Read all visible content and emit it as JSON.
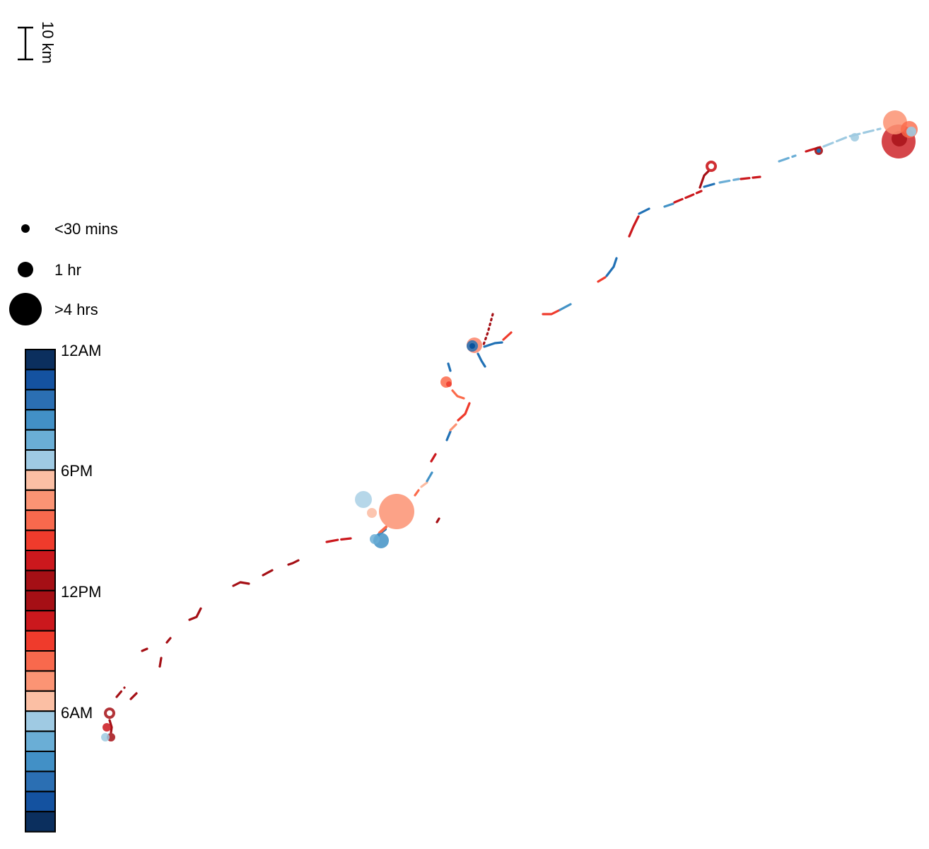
{
  "scale_bar": {
    "label": "10 km"
  },
  "duration_legend": [
    {
      "label": "<30 mins",
      "size": "small"
    },
    {
      "label": "1 hr",
      "size": "medium"
    },
    {
      "label": ">4 hrs",
      "size": "large"
    }
  ],
  "time_legend": {
    "tick_labels": [
      {
        "label": "12AM",
        "slot": 0
      },
      {
        "label": "6PM",
        "slot": 6
      },
      {
        "label": "12PM",
        "slot": 12
      },
      {
        "label": "6AM",
        "slot": 18
      }
    ],
    "colors": [
      "#0b2f5e",
      "#1452a0",
      "#2b6fb3",
      "#4290c6",
      "#6aaed6",
      "#9fcae3",
      "#fbbfa4",
      "#fb9474",
      "#f8694d",
      "#ef3b2c",
      "#cb181d",
      "#a50f15",
      "#a50f15",
      "#cb181d",
      "#ef3b2c",
      "#f8694d",
      "#fb9474",
      "#fbbfa4",
      "#9fcae3",
      "#6aaed6",
      "#4290c6",
      "#2b6fb3",
      "#1452a0",
      "#0b2f5e"
    ]
  },
  "colors": {
    "dark_red": "#a50f15",
    "red": "#cb181d",
    "orange_red": "#ef3b2c",
    "salmon": "#fb6a4a",
    "light_salmon": "#fc9272",
    "pale_salmon": "#fcbba1",
    "light_blue": "#9ecae1",
    "mid_blue": "#6baed6",
    "blue": "#4292c6",
    "dark_blue": "#2171b5",
    "navy": "#08519c"
  }
}
